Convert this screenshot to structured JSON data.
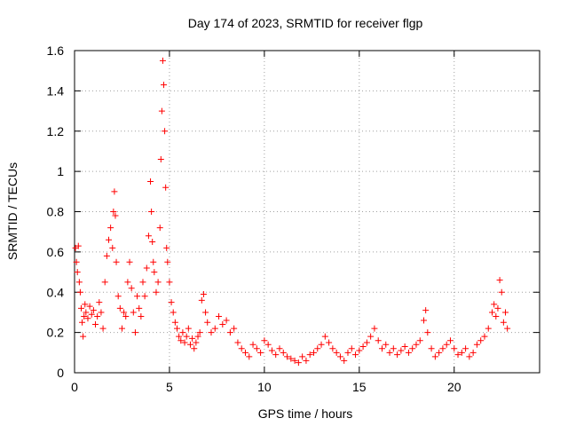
{
  "chart_data": {
    "type": "scatter",
    "title": "Day 174 of 2023, SRMTID for receiver flgp",
    "xlabel": "GPS time / hours",
    "ylabel": "SRMTID / TECUs",
    "xlim": [
      0,
      24.5
    ],
    "ylim": [
      0,
      1.6
    ],
    "xticks": [
      0,
      5,
      10,
      15,
      20
    ],
    "yticks": [
      0,
      0.2,
      0.4,
      0.6,
      0.8,
      1,
      1.2,
      1.4,
      1.6
    ],
    "xtick_labels": [
      "0",
      "5",
      "10",
      "15",
      "20"
    ],
    "ytick_labels": [
      "0",
      "0.2",
      "0.4",
      "0.6",
      "0.8",
      "1",
      "1.2",
      "1.4",
      "1.6"
    ],
    "grid": true,
    "marker": "plus",
    "color": "#ff0000",
    "series": [
      {
        "name": "SRMTID",
        "points": [
          [
            0.05,
            0.62
          ],
          [
            0.1,
            0.55
          ],
          [
            0.15,
            0.5
          ],
          [
            0.2,
            0.63
          ],
          [
            0.25,
            0.45
          ],
          [
            0.3,
            0.4
          ],
          [
            0.35,
            0.32
          ],
          [
            0.4,
            0.25
          ],
          [
            0.45,
            0.18
          ],
          [
            0.5,
            0.28
          ],
          [
            0.55,
            0.34
          ],
          [
            0.6,
            0.3
          ],
          [
            0.7,
            0.27
          ],
          [
            0.8,
            0.33
          ],
          [
            0.9,
            0.29
          ],
          [
            1.0,
            0.31
          ],
          [
            1.1,
            0.24
          ],
          [
            1.2,
            0.28
          ],
          [
            1.3,
            0.35
          ],
          [
            1.4,
            0.3
          ],
          [
            1.5,
            0.22
          ],
          [
            1.6,
            0.45
          ],
          [
            1.7,
            0.58
          ],
          [
            1.8,
            0.66
          ],
          [
            1.9,
            0.72
          ],
          [
            2.0,
            0.62
          ],
          [
            2.05,
            0.8
          ],
          [
            2.1,
            0.9
          ],
          [
            2.15,
            0.78
          ],
          [
            2.2,
            0.55
          ],
          [
            2.3,
            0.38
          ],
          [
            2.4,
            0.32
          ],
          [
            2.5,
            0.22
          ],
          [
            2.6,
            0.3
          ],
          [
            2.7,
            0.28
          ],
          [
            2.8,
            0.45
          ],
          [
            2.9,
            0.55
          ],
          [
            3.0,
            0.42
          ],
          [
            3.1,
            0.3
          ],
          [
            3.2,
            0.2
          ],
          [
            3.3,
            0.38
          ],
          [
            3.4,
            0.32
          ],
          [
            3.5,
            0.28
          ],
          [
            3.6,
            0.45
          ],
          [
            3.7,
            0.38
          ],
          [
            3.8,
            0.52
          ],
          [
            3.9,
            0.68
          ],
          [
            4.0,
            0.95
          ],
          [
            4.05,
            0.8
          ],
          [
            4.1,
            0.65
          ],
          [
            4.15,
            0.55
          ],
          [
            4.2,
            0.5
          ],
          [
            4.3,
            0.4
          ],
          [
            4.4,
            0.45
          ],
          [
            4.5,
            0.72
          ],
          [
            4.55,
            1.06
          ],
          [
            4.6,
            1.3
          ],
          [
            4.65,
            1.55
          ],
          [
            4.7,
            1.43
          ],
          [
            4.75,
            1.2
          ],
          [
            4.8,
            0.92
          ],
          [
            4.85,
            0.62
          ],
          [
            4.9,
            0.55
          ],
          [
            5.0,
            0.45
          ],
          [
            5.1,
            0.35
          ],
          [
            5.2,
            0.3
          ],
          [
            5.3,
            0.25
          ],
          [
            5.4,
            0.22
          ],
          [
            5.5,
            0.18
          ],
          [
            5.6,
            0.16
          ],
          [
            5.7,
            0.2
          ],
          [
            5.8,
            0.15
          ],
          [
            5.9,
            0.18
          ],
          [
            6.0,
            0.22
          ],
          [
            6.1,
            0.14
          ],
          [
            6.2,
            0.17
          ],
          [
            6.3,
            0.12
          ],
          [
            6.4,
            0.15
          ],
          [
            6.5,
            0.18
          ],
          [
            6.6,
            0.2
          ],
          [
            6.7,
            0.36
          ],
          [
            6.8,
            0.39
          ],
          [
            6.9,
            0.3
          ],
          [
            7.0,
            0.25
          ],
          [
            7.2,
            0.2
          ],
          [
            7.4,
            0.22
          ],
          [
            7.6,
            0.28
          ],
          [
            7.8,
            0.24
          ],
          [
            8.0,
            0.26
          ],
          [
            8.2,
            0.2
          ],
          [
            8.4,
            0.22
          ],
          [
            8.6,
            0.15
          ],
          [
            8.8,
            0.12
          ],
          [
            9.0,
            0.1
          ],
          [
            9.2,
            0.08
          ],
          [
            9.4,
            0.14
          ],
          [
            9.6,
            0.12
          ],
          [
            9.8,
            0.1
          ],
          [
            10.0,
            0.16
          ],
          [
            10.2,
            0.14
          ],
          [
            10.4,
            0.11
          ],
          [
            10.6,
            0.09
          ],
          [
            10.8,
            0.12
          ],
          [
            11.0,
            0.1
          ],
          [
            11.2,
            0.08
          ],
          [
            11.4,
            0.07
          ],
          [
            11.6,
            0.06
          ],
          [
            11.8,
            0.05
          ],
          [
            12.0,
            0.08
          ],
          [
            12.2,
            0.06
          ],
          [
            12.4,
            0.09
          ],
          [
            12.6,
            0.1
          ],
          [
            12.8,
            0.12
          ],
          [
            13.0,
            0.14
          ],
          [
            13.2,
            0.18
          ],
          [
            13.4,
            0.15
          ],
          [
            13.6,
            0.12
          ],
          [
            13.8,
            0.1
          ],
          [
            14.0,
            0.08
          ],
          [
            14.2,
            0.06
          ],
          [
            14.4,
            0.1
          ],
          [
            14.6,
            0.12
          ],
          [
            14.8,
            0.09
          ],
          [
            15.0,
            0.11
          ],
          [
            15.2,
            0.13
          ],
          [
            15.4,
            0.15
          ],
          [
            15.6,
            0.18
          ],
          [
            15.8,
            0.22
          ],
          [
            16.0,
            0.16
          ],
          [
            16.2,
            0.12
          ],
          [
            16.4,
            0.14
          ],
          [
            16.6,
            0.1
          ],
          [
            16.8,
            0.12
          ],
          [
            17.0,
            0.09
          ],
          [
            17.2,
            0.11
          ],
          [
            17.4,
            0.13
          ],
          [
            17.6,
            0.1
          ],
          [
            17.8,
            0.12
          ],
          [
            18.0,
            0.14
          ],
          [
            18.2,
            0.16
          ],
          [
            18.4,
            0.26
          ],
          [
            18.5,
            0.31
          ],
          [
            18.6,
            0.2
          ],
          [
            18.8,
            0.12
          ],
          [
            19.0,
            0.08
          ],
          [
            19.2,
            0.1
          ],
          [
            19.4,
            0.12
          ],
          [
            19.6,
            0.14
          ],
          [
            19.8,
            0.16
          ],
          [
            20.0,
            0.12
          ],
          [
            20.2,
            0.09
          ],
          [
            20.4,
            0.1
          ],
          [
            20.6,
            0.12
          ],
          [
            20.8,
            0.08
          ],
          [
            21.0,
            0.1
          ],
          [
            21.2,
            0.14
          ],
          [
            21.4,
            0.16
          ],
          [
            21.6,
            0.18
          ],
          [
            21.8,
            0.22
          ],
          [
            22.0,
            0.3
          ],
          [
            22.1,
            0.34
          ],
          [
            22.2,
            0.28
          ],
          [
            22.3,
            0.32
          ],
          [
            22.4,
            0.46
          ],
          [
            22.5,
            0.4
          ],
          [
            22.6,
            0.25
          ],
          [
            22.7,
            0.3
          ],
          [
            22.8,
            0.22
          ]
        ]
      }
    ]
  }
}
